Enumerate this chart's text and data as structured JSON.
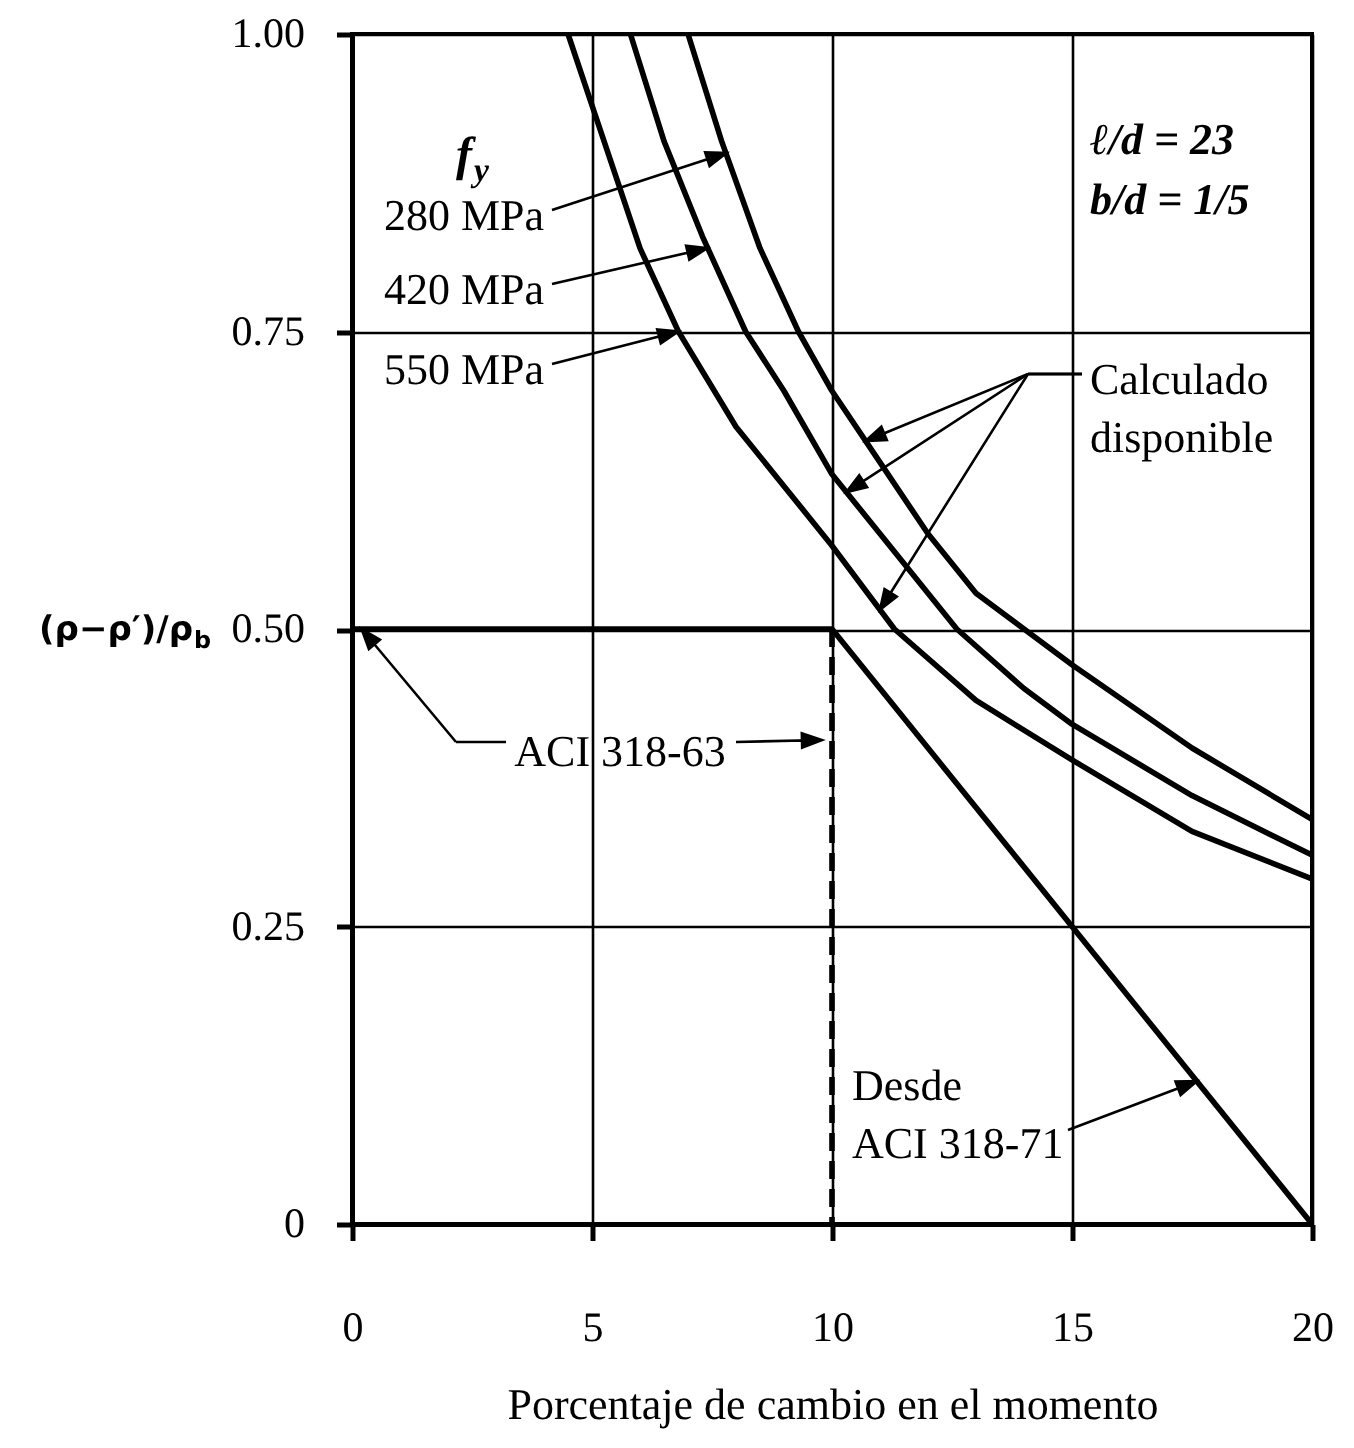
{
  "chart_data": {
    "type": "line",
    "xlabel": "Porcentaje de cambio en el momento",
    "ylabel": "(ρ−ρ′)/ρ$_{b}$",
    "xlim": [
      0,
      20
    ],
    "ylim": [
      0,
      1
    ],
    "xticks": [
      0,
      5,
      10,
      15,
      20
    ],
    "yticks": [
      0,
      0.25,
      {
        "value": 0.5,
        "label": "0.50"
      },
      0.75,
      {
        "value": 1,
        "label": "1.00"
      }
    ],
    "grid": true,
    "line_style": "solid",
    "series": [
      {
        "color": "#000000",
        "x": [
          7.0,
          7.7,
          8.5,
          9.3,
          10,
          11,
          12,
          13,
          14,
          15,
          17.5,
          20
        ],
        "values": [
          1.0,
          0.91,
          0.82,
          0.75,
          0.7,
          0.64,
          0.58,
          0.53,
          0.5,
          0.47,
          0.4,
          0.34
        ]
      },
      {
        "color": "#000000",
        "x": [
          5.8,
          6.5,
          7.3,
          8.2,
          9,
          10,
          11,
          12.6,
          14,
          15,
          17.5,
          20
        ],
        "values": [
          1.0,
          0.91,
          0.83,
          0.75,
          0.7,
          0.63,
          0.58,
          0.5,
          0.45,
          0.42,
          0.36,
          0.31
        ]
      },
      {
        "color": "#000000",
        "x": [
          4.5,
          5,
          6,
          6.8,
          8,
          10,
          11.3,
          13,
          15,
          17.5,
          20
        ],
        "values": [
          1.0,
          0.94,
          0.82,
          0.75,
          0.67,
          0.57,
          0.5,
          0.44,
          0.39,
          0.33,
          0.29
        ]
      },
      {
        "color": "#000000",
        "x": [
          0,
          10
        ],
        "values": [
          0.5,
          0.5
        ]
      },
      {
        "color": "#000000",
        "x": [
          10,
          10
        ],
        "values": [
          0.5,
          0
        ],
        "line_style": "dashed"
      },
      {
        "color": "#000000",
        "x": [
          10,
          20
        ],
        "values": [
          0.5,
          0
        ]
      }
    ],
    "annotations": [
      "f$_{y}$",
      {
        "text": "280 MPa",
        "x": 7.8,
        "y": 0.9
      },
      {
        "text": "420 MPa",
        "x": 7.4,
        "y": 0.82
      },
      {
        "text": "550 MPa",
        "x": 6.8,
        "y": 0.75
      },
      "ℓ/d = 23",
      "b/d = 1/5",
      "Calculado disponible",
      "ACI 318-63",
      {
        "text": "Desde ACI 318-71",
        "x": 17.6,
        "y": 0.12
      }
    ]
  }
}
